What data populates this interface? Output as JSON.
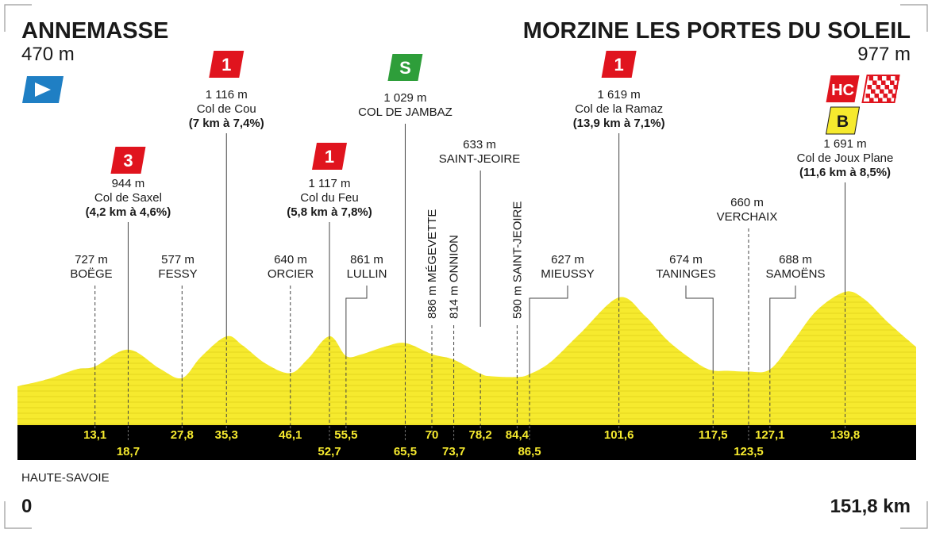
{
  "stage": {
    "start": {
      "name": "ANNEMASSE",
      "altitude": "470 m"
    },
    "finish": {
      "name": "MORZINE LES PORTES DU SOLEIL",
      "altitude": "977 m"
    },
    "region": "HAUTE-SAVOIE",
    "start_km": "0",
    "total_distance": "151,8 km",
    "start_icon": "start-arrow-icon",
    "finish_icon": "checkered-flag-icon"
  },
  "colors": {
    "profile_fill": "#f6ea2e",
    "profile_stripe": "#e4d51e",
    "km_bar": "#000000",
    "km_text": "#f6ea2e",
    "climb_badge": "#e0141e",
    "sprint_badge": "#2e9e3a",
    "bonus_badge": "#f6ea2e",
    "start_badge": "#1f7fc4"
  },
  "climbs": [
    {
      "km": 18.7,
      "badge": "3",
      "badge_type": "climb",
      "altitude": "944 m",
      "name": "Col de Saxel",
      "detail": "(4,2 km à 4,6%)"
    },
    {
      "km": 35.3,
      "badge": "1",
      "badge_type": "climb",
      "altitude": "1 116 m",
      "name": "Col de Cou",
      "detail": "(7 km à 7,4%)"
    },
    {
      "km": 52.7,
      "badge": "1",
      "badge_type": "climb",
      "altitude": "1 117 m",
      "name": "Col du Feu",
      "detail": "(5,8 km à 7,8%)"
    },
    {
      "km": 65.5,
      "badge": "S",
      "badge_type": "sprint",
      "altitude": "1 029 m",
      "name": "COL DE JAMBAZ",
      "detail": ""
    },
    {
      "km": 101.6,
      "badge": "1",
      "badge_type": "climb",
      "altitude": "1 619 m",
      "name": "Col de la Ramaz",
      "detail": "(13,9 km à 7,1%)"
    },
    {
      "km": 139.8,
      "badge": "HC",
      "badge_type": "climb",
      "bonus_badge": "B",
      "altitude": "1 691 m",
      "name": "Col de Joux Plane",
      "detail": "(11,6 km à 8,5%)"
    }
  ],
  "places": [
    {
      "km": 13.1,
      "altitude": "727 m",
      "name": "BOËGE"
    },
    {
      "km": 27.8,
      "altitude": "577 m",
      "name": "FESSY"
    },
    {
      "km": 46.1,
      "altitude": "640 m",
      "name": "ORCIER"
    },
    {
      "km": 55.5,
      "altitude": "861 m",
      "name": "LULLIN"
    },
    {
      "km": 70,
      "altitude": "886 m",
      "name": "MÉGEVETTE",
      "vertical": true
    },
    {
      "km": 73.7,
      "altitude": "814 m",
      "name": "ONNION",
      "vertical": true
    },
    {
      "km": 78.2,
      "altitude": "633 m",
      "name": "SAINT-JEOIRE"
    },
    {
      "km": 84.4,
      "altitude": "590 m",
      "name": "SAINT-JEOIRE",
      "vertical": true
    },
    {
      "km": 86.5,
      "altitude": "627 m",
      "name": "MIEUSSY"
    },
    {
      "km": 117.5,
      "altitude": "674 m",
      "name": "TANINGES"
    },
    {
      "km": 123.5,
      "altitude": "660 m",
      "name": "VERCHAIX"
    },
    {
      "km": 127.1,
      "altitude": "688 m",
      "name": "SAMOËNS"
    }
  ],
  "chart_data": {
    "type": "area",
    "xlabel": "",
    "ylabel": "",
    "xlim": [
      0,
      151.8
    ],
    "ylim": [
      400,
      1750
    ],
    "x": [
      0,
      5,
      10,
      13.1,
      18.7,
      24,
      27.8,
      31,
      35.3,
      38,
      42,
      46.1,
      49,
      52.7,
      55.5,
      58,
      62,
      65.5,
      70,
      73.7,
      78.2,
      80,
      84.4,
      86.5,
      90,
      95,
      101.6,
      106,
      110,
      115,
      117.5,
      120,
      123.5,
      127.1,
      131,
      135,
      139.8,
      143,
      147,
      151.8
    ],
    "y": [
      470,
      560,
      690,
      727,
      944,
      700,
      577,
      850,
      1116,
      1000,
      760,
      640,
      820,
      1117,
      861,
      880,
      980,
      1029,
      886,
      814,
      633,
      600,
      590,
      627,
      780,
      1150,
      1619,
      1380,
      1050,
      760,
      674,
      670,
      660,
      688,
      1050,
      1450,
      1691,
      1600,
      1300,
      977
    ],
    "km_labels": [
      "13,1",
      "18,7",
      "27,8",
      "35,3",
      "46,1",
      "52,7",
      "55,5",
      "65,5",
      "70",
      "73,7",
      "78,2",
      "84,4",
      "86,5",
      "101,6",
      "117,5",
      "123,5",
      "127,1",
      "139,8"
    ],
    "km_values": [
      13.1,
      18.7,
      27.8,
      35.3,
      46.1,
      52.7,
      55.5,
      65.5,
      70,
      73.7,
      78.2,
      84.4,
      86.5,
      101.6,
      117.5,
      123.5,
      127.1,
      139.8
    ],
    "km_lower_row": [
      false,
      true,
      false,
      false,
      false,
      true,
      false,
      true,
      false,
      true,
      false,
      false,
      true,
      false,
      false,
      true,
      false,
      false
    ]
  }
}
